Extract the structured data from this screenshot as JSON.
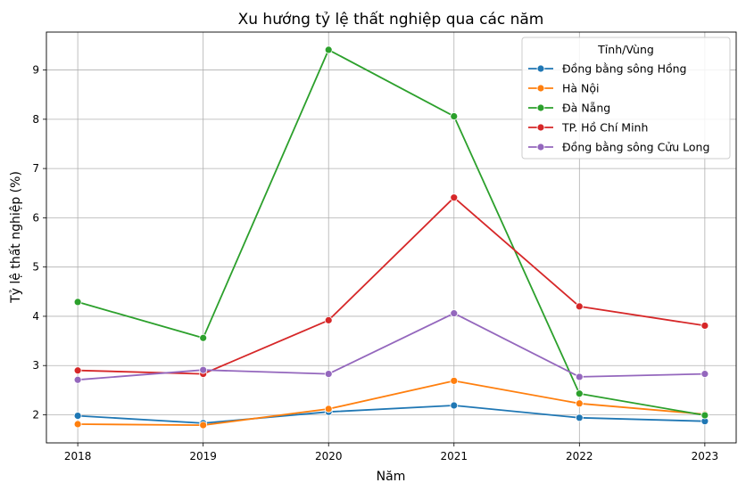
{
  "chart_data": {
    "type": "line",
    "title": "Xu hướng tỷ lệ thất nghiệp qua các năm",
    "xlabel": "Năm",
    "ylabel": "Tỷ lệ thất nghiệp (%)",
    "x": [
      2018,
      2019,
      2020,
      2021,
      2022,
      2023
    ],
    "xticks": [
      "2018",
      "2019",
      "2020",
      "2021",
      "2022",
      "2023"
    ],
    "xlim": [
      2017.75,
      2023.25
    ],
    "ylim": [
      1.43,
      9.77
    ],
    "yticks": [
      "2",
      "3",
      "4",
      "5",
      "6",
      "7",
      "8",
      "9"
    ],
    "grid": true,
    "legend": {
      "title": "Tỉnh/Vùng",
      "position": "top-right"
    },
    "series": [
      {
        "name": "Đồng bằng sông Hồng",
        "color": "#1f77b4",
        "values": [
          1.98,
          1.83,
          2.06,
          2.19,
          1.94,
          1.87
        ]
      },
      {
        "name": "Hà Nội",
        "color": "#ff7f0e",
        "values": [
          1.81,
          1.79,
          2.12,
          2.69,
          2.23,
          2.01
        ]
      },
      {
        "name": "Đà Nẵng",
        "color": "#2ca02c",
        "values": [
          4.29,
          3.56,
          9.41,
          8.06,
          2.43,
          1.99
        ]
      },
      {
        "name": "TP. Hồ Chí Minh",
        "color": "#d62728",
        "values": [
          2.9,
          2.83,
          3.92,
          6.41,
          4.2,
          3.81
        ]
      },
      {
        "name": "Đồng bằng sông Cửu Long",
        "color": "#9467bd",
        "values": [
          2.71,
          2.91,
          2.83,
          4.06,
          2.77,
          2.83
        ]
      }
    ]
  }
}
